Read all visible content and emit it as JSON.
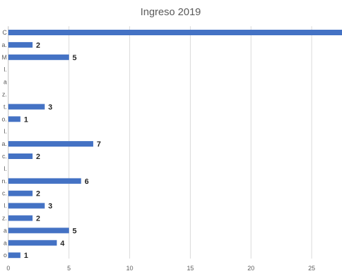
{
  "chart_data": {
    "type": "bar",
    "orientation": "horizontal",
    "title": "Ingreso 2019",
    "xlabel": "",
    "ylabel": "",
    "xlim": [
      0,
      27.5
    ],
    "xticks": [
      0,
      5,
      10,
      15,
      20,
      25
    ],
    "grid": "vertical",
    "legend": "none",
    "bar_color": "#4472C4",
    "categories": [
      "C",
      "a.",
      "M",
      "l.",
      "a",
      "z.",
      "t.",
      "o.",
      "l.",
      "a.",
      "c.",
      "l.",
      "n.",
      "c.",
      "l.",
      "z.",
      "a",
      "a",
      "o"
    ],
    "values": [
      28,
      2,
      5,
      0,
      0,
      0,
      3,
      1,
      0,
      7,
      2,
      0,
      6,
      2,
      3,
      2,
      5,
      4,
      1
    ],
    "data_labels": [
      "",
      "2",
      "5",
      "",
      "",
      "",
      "3",
      "1",
      "",
      "7",
      "2",
      "",
      "6",
      "2",
      "3",
      "2",
      "5",
      "4",
      "1"
    ]
  }
}
